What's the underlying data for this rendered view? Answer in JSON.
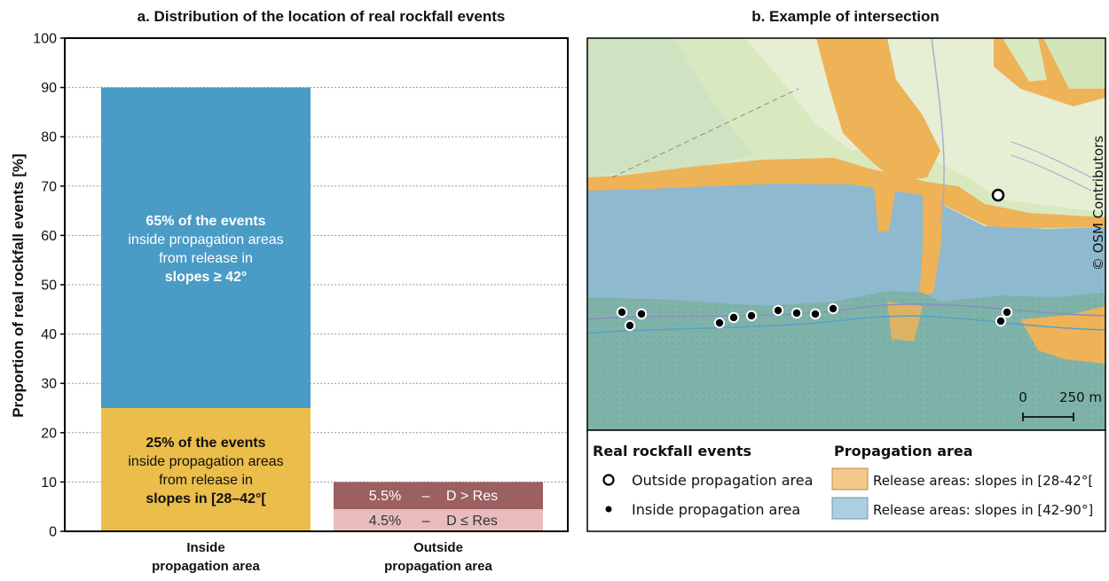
{
  "chart_data": [
    {
      "type": "bar",
      "stacked": true,
      "title": "a. Distribution of the location of real rockfall events",
      "ylabel": "Proportion of real rockfall events [%]",
      "xlabel": "",
      "ylim": [
        0,
        100
      ],
      "yticks": [
        "0",
        "10",
        "20",
        "30",
        "40",
        "50",
        "60",
        "70",
        "80",
        "90",
        "100"
      ],
      "grid": true,
      "categories": [
        "Inside propagation area",
        "Outside propagation area"
      ],
      "category_lines": [
        [
          "Inside",
          "propagation area"
        ],
        [
          "Outside",
          "propagation area"
        ]
      ],
      "segments": [
        {
          "category": 0,
          "base": 0,
          "value": 25,
          "color": "#ebbd4a",
          "lines": [
            {
              "text": "25% of the events",
              "bold": true
            },
            {
              "text": "inside propagation areas",
              "bold": false
            },
            {
              "text": "from release in",
              "bold": false
            },
            {
              "text": "slopes in [28–42°[",
              "bold": true
            }
          ]
        },
        {
          "category": 0,
          "base": 25,
          "value": 65,
          "color": "#4a9bc6",
          "lines": [
            {
              "text": "65% of the events",
              "bold": true
            },
            {
              "text": "inside propagation areas",
              "bold": false
            },
            {
              "text": "from release in",
              "bold": false
            },
            {
              "text": "slopes ≥ 42°",
              "bold": true
            }
          ]
        },
        {
          "category": 1,
          "base": 0,
          "value": 4.5,
          "color": "#e8bcbc",
          "inline_label": {
            "pct": "4.5%",
            "dash": "–",
            "cond": "D ≤ Res"
          }
        },
        {
          "category": 1,
          "base": 4.5,
          "value": 5.5,
          "color": "#9c6060",
          "inline_label": {
            "pct": "5.5%",
            "dash": "–",
            "cond": "D > Res"
          }
        }
      ]
    },
    {
      "type": "map",
      "title": "b. Example of intersection",
      "attribution": "© OSM Contributors",
      "scalebar": {
        "start": "0",
        "end": "250 m"
      },
      "legend": {
        "events_title": "Real rockfall events",
        "events": [
          {
            "label": "Outside propagation area",
            "symbol": "hollow-circle"
          },
          {
            "label": "Inside propagation area",
            "symbol": "filled-dot"
          }
        ],
        "areas_title": "Propagation area",
        "areas": [
          {
            "label": "Release areas: slopes in [28-42°[",
            "color": "#f5c98a"
          },
          {
            "label": "Release areas: slopes in [42-90°]",
            "color": "#a9cfe0"
          }
        ]
      },
      "colors": {
        "orange": "#eeb257",
        "blue": "#8fb9cf",
        "green": "#d8e9c0"
      }
    }
  ]
}
